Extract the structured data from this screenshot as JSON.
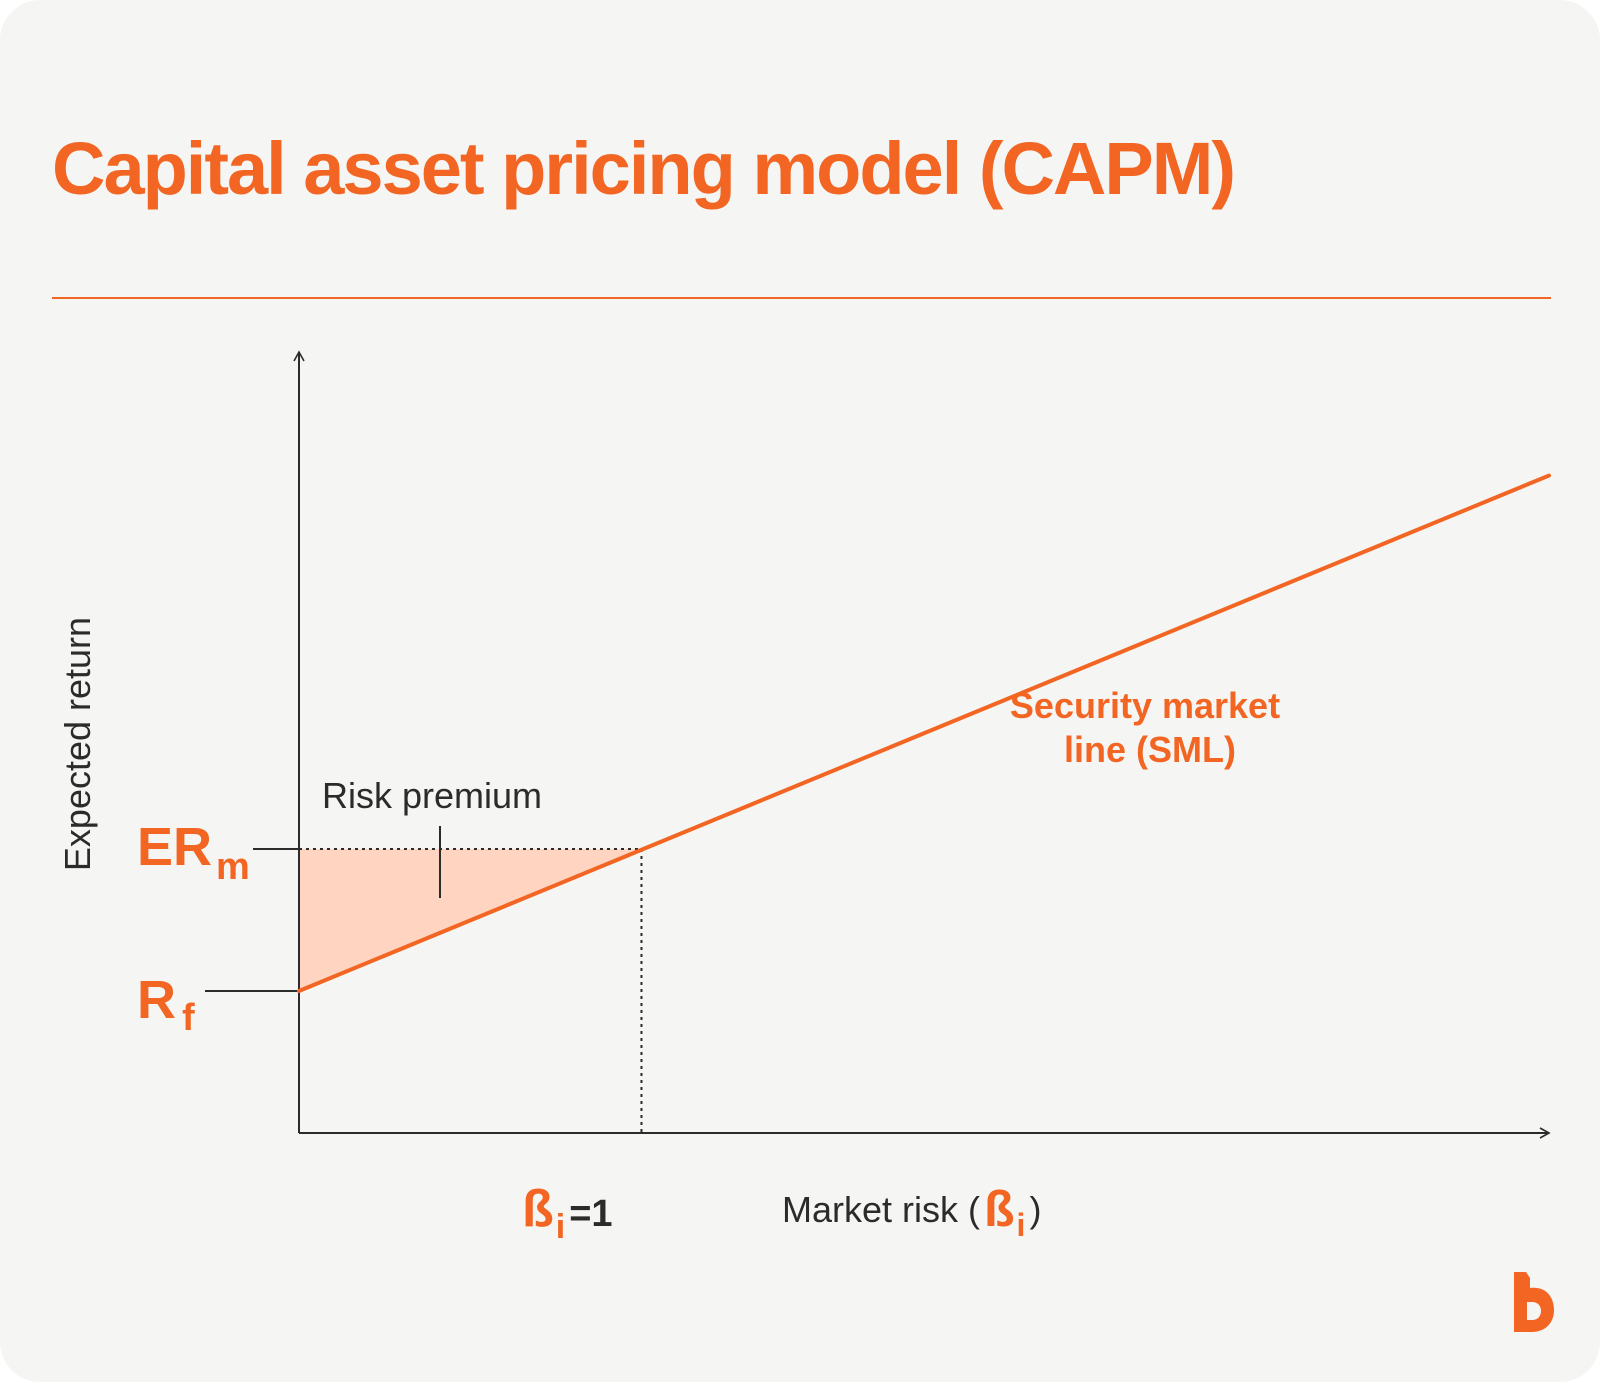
{
  "header": {
    "title": "Capital asset pricing model (CAPM)"
  },
  "colors": {
    "accent": "#f26522",
    "ink": "#2b2b2b",
    "premium_fill": "#ffd5c2",
    "background": "#f5f5f3"
  },
  "logo": {
    "icon": "b-logo-icon"
  },
  "chart_data": {
    "type": "line",
    "title": "Capital asset pricing model (CAPM)",
    "xlabel": {
      "prefix": "Market risk (",
      "symbol": "ß",
      "subscript": "i",
      "suffix": ")"
    },
    "ylabel": "Expected return",
    "xlim": [
      0,
      3.65
    ],
    "ylim": [
      0,
      5.5
    ],
    "grid": false,
    "series": [
      {
        "name": "Security market line (SML)",
        "name_lines": [
          "Security market",
          "line (SML)"
        ],
        "x": [
          0,
          3.65
        ],
        "y": [
          1,
          4.63
        ]
      }
    ],
    "y_markers": [
      {
        "main": "ER",
        "sub": "m",
        "y": 2
      },
      {
        "main": "R",
        "sub": "f",
        "y": 1
      }
    ],
    "x_markers": [
      {
        "main": "ß",
        "sub": "i",
        "suffix": "=1",
        "x": 1
      }
    ],
    "annotations": [
      {
        "text": "Risk premium"
      }
    ]
  }
}
